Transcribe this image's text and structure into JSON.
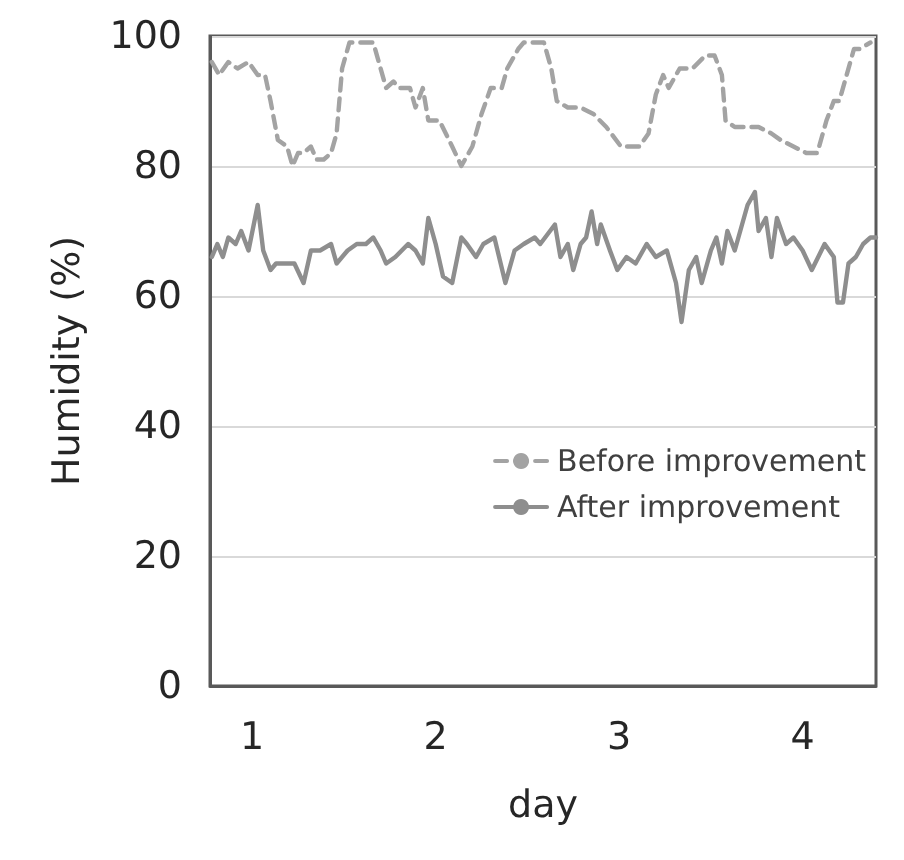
{
  "chart_data": {
    "type": "line",
    "xlabel": "day",
    "ylabel": "Humidity (%)",
    "xlim": [
      0.77,
      4.4
    ],
    "xticks": [
      1,
      2,
      3,
      4
    ],
    "ylim": [
      0,
      100
    ],
    "yticks": [
      0,
      20,
      40,
      60,
      80,
      100
    ],
    "grid": "y",
    "legend": "right",
    "marker": "none",
    "series": [
      {
        "name": "Before improvement",
        "color": "#a3a3a3",
        "line_style": "dashed",
        "x": [
          0.78,
          0.82,
          0.87,
          0.92,
          0.98,
          1.03,
          1.07,
          1.1,
          1.14,
          1.19,
          1.22,
          1.25,
          1.28,
          1.32,
          1.35,
          1.39,
          1.43,
          1.46,
          1.49,
          1.53,
          1.66,
          1.7,
          1.73,
          1.77,
          1.8,
          1.86,
          1.89,
          1.93,
          1.96,
          2.02,
          2.09,
          2.14,
          2.2,
          2.25,
          2.3,
          2.36,
          2.39,
          2.45,
          2.48,
          2.59,
          2.63,
          2.66,
          2.72,
          2.79,
          2.86,
          2.93,
          3.01,
          3.06,
          3.11,
          3.16,
          3.2,
          3.24,
          3.27,
          3.33,
          3.4,
          3.47,
          3.52,
          3.56,
          3.58,
          3.63,
          3.7,
          3.76,
          3.83,
          3.88,
          3.95,
          4.02,
          4.08,
          4.13,
          4.17,
          4.2,
          4.24,
          4.28,
          4.31,
          4.37
        ],
        "values": [
          96,
          94,
          96,
          95,
          96,
          94,
          94,
          90,
          84,
          83,
          80,
          82,
          82,
          83,
          81,
          81,
          82,
          85,
          95,
          99,
          99,
          95,
          92,
          93,
          92,
          92,
          89,
          92,
          87,
          87,
          83,
          80,
          83,
          88,
          92,
          92,
          95,
          98,
          99,
          99,
          95,
          90,
          89,
          89,
          88,
          86,
          83,
          83,
          83,
          85,
          91,
          94,
          92,
          95,
          95,
          97,
          97,
          94,
          87,
          86,
          86,
          86,
          85,
          84,
          83,
          82,
          82,
          87,
          90,
          90,
          94,
          98,
          98,
          99
        ]
      },
      {
        "name": "After improvement",
        "color": "#8e8e8e",
        "line_style": "solid",
        "x": [
          0.78,
          0.81,
          0.84,
          0.87,
          0.91,
          0.94,
          0.98,
          1.03,
          1.06,
          1.1,
          1.13,
          1.18,
          1.23,
          1.28,
          1.32,
          1.37,
          1.43,
          1.46,
          1.52,
          1.57,
          1.62,
          1.66,
          1.7,
          1.73,
          1.78,
          1.85,
          1.89,
          1.93,
          1.96,
          2.0,
          2.04,
          2.09,
          2.14,
          2.17,
          2.22,
          2.26,
          2.32,
          2.38,
          2.43,
          2.48,
          2.54,
          2.57,
          2.65,
          2.68,
          2.72,
          2.75,
          2.79,
          2.82,
          2.85,
          2.88,
          2.9,
          2.95,
          2.99,
          3.04,
          3.09,
          3.15,
          3.2,
          3.26,
          3.31,
          3.34,
          3.38,
          3.42,
          3.45,
          3.5,
          3.53,
          3.56,
          3.59,
          3.63,
          3.67,
          3.7,
          3.74,
          3.76,
          3.8,
          3.83,
          3.86,
          3.91,
          3.95,
          4.0,
          4.05,
          4.12,
          4.17,
          4.19,
          4.22,
          4.25,
          4.29,
          4.33,
          4.37,
          4.4
        ],
        "values": [
          66,
          68,
          66,
          69,
          68,
          70,
          67,
          74,
          67,
          64,
          65,
          65,
          65,
          62,
          67,
          67,
          68,
          65,
          67,
          68,
          68,
          69,
          67,
          65,
          66,
          68,
          67,
          65,
          72,
          68,
          63,
          62,
          69,
          68,
          66,
          68,
          69,
          62,
          67,
          68,
          69,
          68,
          71,
          66,
          68,
          64,
          68,
          69,
          73,
          68,
          71,
          67,
          64,
          66,
          65,
          68,
          66,
          67,
          62,
          56,
          64,
          66,
          62,
          67,
          69,
          65,
          70,
          67,
          71,
          74,
          76,
          70,
          72,
          66,
          72,
          68,
          69,
          67,
          64,
          68,
          66,
          59,
          59,
          65,
          66,
          68,
          69,
          69
        ]
      }
    ]
  }
}
